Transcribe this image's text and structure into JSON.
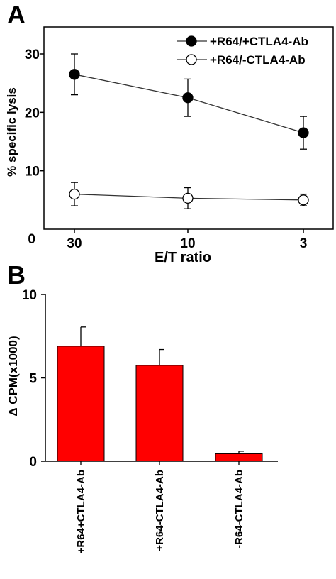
{
  "panels": {
    "a_label": "A",
    "b_label": "B"
  },
  "chart_data": [
    {
      "type": "line",
      "panel": "A",
      "xlabel": "E/T ratio",
      "ylabel": "% specific lysis",
      "categories": [
        "30",
        "10",
        "3"
      ],
      "ylim": [
        0,
        35
      ],
      "yticks": [
        0,
        10,
        20,
        30
      ],
      "grid": false,
      "legend_position": "top-right",
      "series": [
        {
          "name": "+R64/+CTLA4-Ab",
          "marker": "filled-circle",
          "color": "#000000",
          "values": [
            26.5,
            22.5,
            16.5
          ],
          "errors": [
            3.5,
            3.2,
            2.8
          ]
        },
        {
          "name": "+R64/-CTLA4-Ab",
          "marker": "open-circle",
          "color": "#000000",
          "values": [
            6.0,
            5.3,
            5.0
          ],
          "errors": [
            2.0,
            1.8,
            1.0
          ]
        }
      ]
    },
    {
      "type": "bar",
      "panel": "B",
      "xlabel": "",
      "ylabel": "Δ CPM(x1000)",
      "categories": [
        "+R64+CTLA4-Ab",
        "+R64-CTLA4-Ab",
        "-R64-CTLA4-Ab"
      ],
      "values": [
        6.9,
        5.75,
        0.45
      ],
      "errors": [
        1.15,
        0.95,
        0.15
      ],
      "ylim": [
        0,
        10
      ],
      "yticks": [
        0,
        5,
        10
      ],
      "bar_color": "#ff0000",
      "grid": false
    }
  ]
}
